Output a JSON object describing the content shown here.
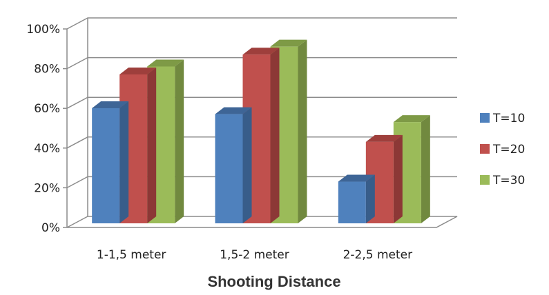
{
  "chart_data": {
    "type": "bar",
    "title": "",
    "xlabel": "Shooting Distance",
    "ylabel": "",
    "categories": [
      "1-1,5 meter",
      "1,5-2 meter",
      "2-2,5 meter"
    ],
    "series": [
      {
        "name": "T=10",
        "values": [
          58,
          55,
          21
        ],
        "color": "#4F81BD",
        "side_color": "#385D8A",
        "top_color": "#3E6596"
      },
      {
        "name": "T=20",
        "values": [
          75,
          85,
          41
        ],
        "color": "#C0504D",
        "side_color": "#8C3836",
        "top_color": "#9E3F3C"
      },
      {
        "name": "T=30",
        "values": [
          79,
          89,
          51
        ],
        "color": "#9BBB59",
        "side_color": "#71893F",
        "top_color": "#7E9A46"
      }
    ],
    "ylim": [
      0,
      100
    ],
    "yticks": [
      "0%",
      "20%",
      "40%",
      "60%",
      "80%",
      "100%"
    ],
    "grid": true,
    "legend_position": "right",
    "three_d": true
  }
}
